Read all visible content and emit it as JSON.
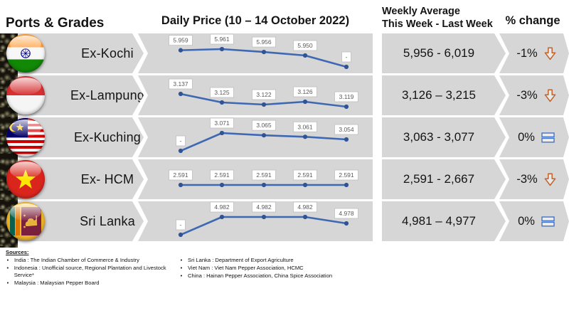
{
  "header": {
    "ports_grades": "Ports & Grades",
    "daily_price": "Daily Price (10 – 14 October 2022)",
    "weekly_avg_line1": "Weekly Average",
    "weekly_avg_line2": "This Week - Last Week",
    "pct_change": "% change"
  },
  "rows": [
    {
      "port": "Ex-Kochi",
      "flag": "india",
      "labels": [
        "5.959",
        "5.961",
        "5.956",
        "5.950",
        "-"
      ],
      "values": [
        5959,
        5961,
        5956,
        5950,
        null
      ],
      "weekly": "5,956 - 6,019",
      "change": "-1%",
      "trend": "down"
    },
    {
      "port": "Ex-Lampung",
      "flag": "indonesia",
      "labels": [
        "3.137",
        "3.125",
        "3.122",
        "3.126",
        "3.119"
      ],
      "values": [
        3137,
        3125,
        3122,
        3126,
        3119
      ],
      "weekly": "3,126 – 3,215",
      "change": "-3%",
      "trend": "down"
    },
    {
      "port": "Ex-Kuching",
      "flag": "malaysia",
      "labels": [
        "-",
        "3.071",
        "3.065",
        "3.061",
        "3.054"
      ],
      "values": [
        null,
        3071,
        3065,
        3061,
        3054
      ],
      "weekly": "3,063 - 3,077",
      "change": "0%",
      "trend": "equal"
    },
    {
      "port": "Ex- HCM",
      "flag": "vietnam",
      "labels": [
        "2.591",
        "2.591",
        "2.591",
        "2.591",
        "2.591"
      ],
      "values": [
        2591,
        2591,
        2591,
        2591,
        2591
      ],
      "weekly": "2,591 - 2,667",
      "change": "-3%",
      "trend": "down"
    },
    {
      "port": "Sri Lanka",
      "flag": "srilanka",
      "labels": [
        "-",
        "4.982",
        "4.982",
        "4.982",
        "4.978"
      ],
      "values": [
        null,
        4982,
        4982,
        4982,
        4978
      ],
      "weekly": "4,981 – 4,977",
      "change": "0%",
      "trend": "equal"
    }
  ],
  "chart_data": [
    {
      "type": "line",
      "name": "Ex-Kochi",
      "title": "Daily Price (10 – 14 October 2022)",
      "values": [
        5959,
        5961,
        5956,
        5950,
        null
      ],
      "point_labels": [
        "5.959",
        "5.961",
        "5.956",
        "5.950",
        "-"
      ],
      "legend": "off",
      "grid": "off"
    },
    {
      "type": "line",
      "name": "Ex-Lampung",
      "values": [
        3137,
        3125,
        3122,
        3126,
        3119
      ],
      "point_labels": [
        "3.137",
        "3.125",
        "3.122",
        "3.126",
        "3.119"
      ],
      "legend": "off",
      "grid": "off"
    },
    {
      "type": "line",
      "name": "Ex-Kuching",
      "values": [
        null,
        3071,
        3065,
        3061,
        3054
      ],
      "point_labels": [
        "-",
        "3.071",
        "3.065",
        "3.061",
        "3.054"
      ],
      "legend": "off",
      "grid": "off"
    },
    {
      "type": "line",
      "name": "Ex- HCM",
      "values": [
        2591,
        2591,
        2591,
        2591,
        2591
      ],
      "point_labels": [
        "2.591",
        "2.591",
        "2.591",
        "2.591",
        "2.591"
      ],
      "legend": "off",
      "grid": "off"
    },
    {
      "type": "line",
      "name": "Sri Lanka",
      "values": [
        null,
        4982,
        4982,
        4982,
        4978
      ],
      "point_labels": [
        "-",
        "4.982",
        "4.982",
        "4.982",
        "4.978"
      ],
      "legend": "off",
      "grid": "off"
    }
  ],
  "sources": {
    "heading": "Sources:",
    "left": [
      "India : The Indian Chamber of Commerce & Industry",
      "Indonesia : Unofficial source, Regional Plantation and Livestock Service*",
      "Malaysia : Malaysian Pepper Board"
    ],
    "right": [
      "Sri Lanka : Department of Export Agriculture",
      "Viet Nam : Viet Nam Pepper Association, HCMC",
      "China : Hainan Pepper Association, China Spice Association"
    ]
  },
  "colors": {
    "band_gray": "#D6D6D6",
    "line_blue": "#3E68B2",
    "marker_blue": "#2F5496",
    "arrow_down_orange": "#C0632B",
    "equal_blue": "#4472C4",
    "label_text": "#595959"
  }
}
